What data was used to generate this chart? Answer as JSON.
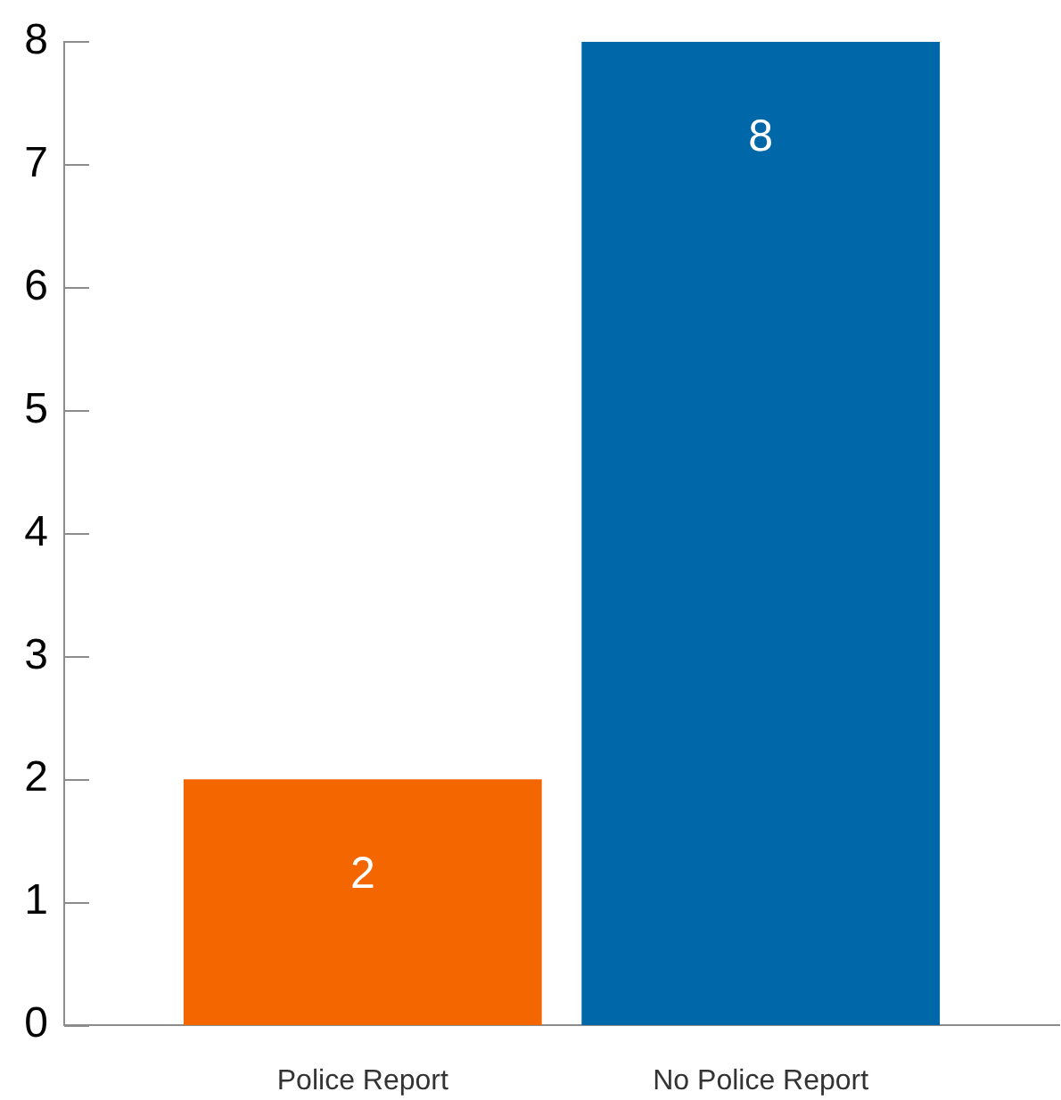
{
  "chart_data": {
    "type": "bar",
    "categories": [
      "Police Report",
      "No Police Report"
    ],
    "values": [
      2,
      8
    ],
    "colors": [
      "#f46600",
      "#0068a8"
    ],
    "ylim": [
      0,
      8
    ],
    "yticks": [
      0,
      1,
      2,
      3,
      4,
      5,
      6,
      7,
      8
    ],
    "data_labels": true
  }
}
